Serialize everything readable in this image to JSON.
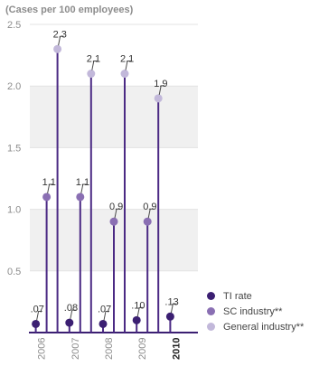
{
  "chart_data": {
    "type": "lollipop",
    "unit_label": "(Cases per 100 employees)",
    "categories": [
      "2006",
      "2007",
      "2008",
      "2009",
      "2010"
    ],
    "highlighted_category": "2010",
    "ylim": [
      0,
      2.5
    ],
    "yticks": [
      "0.5",
      "1.0",
      "1.5",
      "2.0",
      "2.5"
    ],
    "ytick_values": [
      0.5,
      1.0,
      1.5,
      2.0,
      2.5
    ],
    "grid": "alternating horizontal bands",
    "legend_position": "bottom-right",
    "series": [
      {
        "name": "TI rate",
        "color": "#3b1f72",
        "values": [
          0.07,
          0.08,
          0.07,
          0.1,
          0.13
        ],
        "labels": [
          ".07",
          ".08",
          ".07",
          ".10",
          ".13"
        ]
      },
      {
        "name": "SC industry**",
        "color": "#8a6fb3",
        "values": [
          1.1,
          1.1,
          0.9,
          0.9,
          null
        ],
        "labels": [
          "1.1",
          "1.1",
          "0.9",
          "0.9",
          null
        ]
      },
      {
        "name": "General industry**",
        "color": "#c2b8da",
        "values": [
          2.3,
          2.1,
          2.1,
          1.9,
          null
        ],
        "labels": [
          "2.3",
          "2.1",
          "2.1",
          "1.9",
          null
        ]
      }
    ]
  }
}
